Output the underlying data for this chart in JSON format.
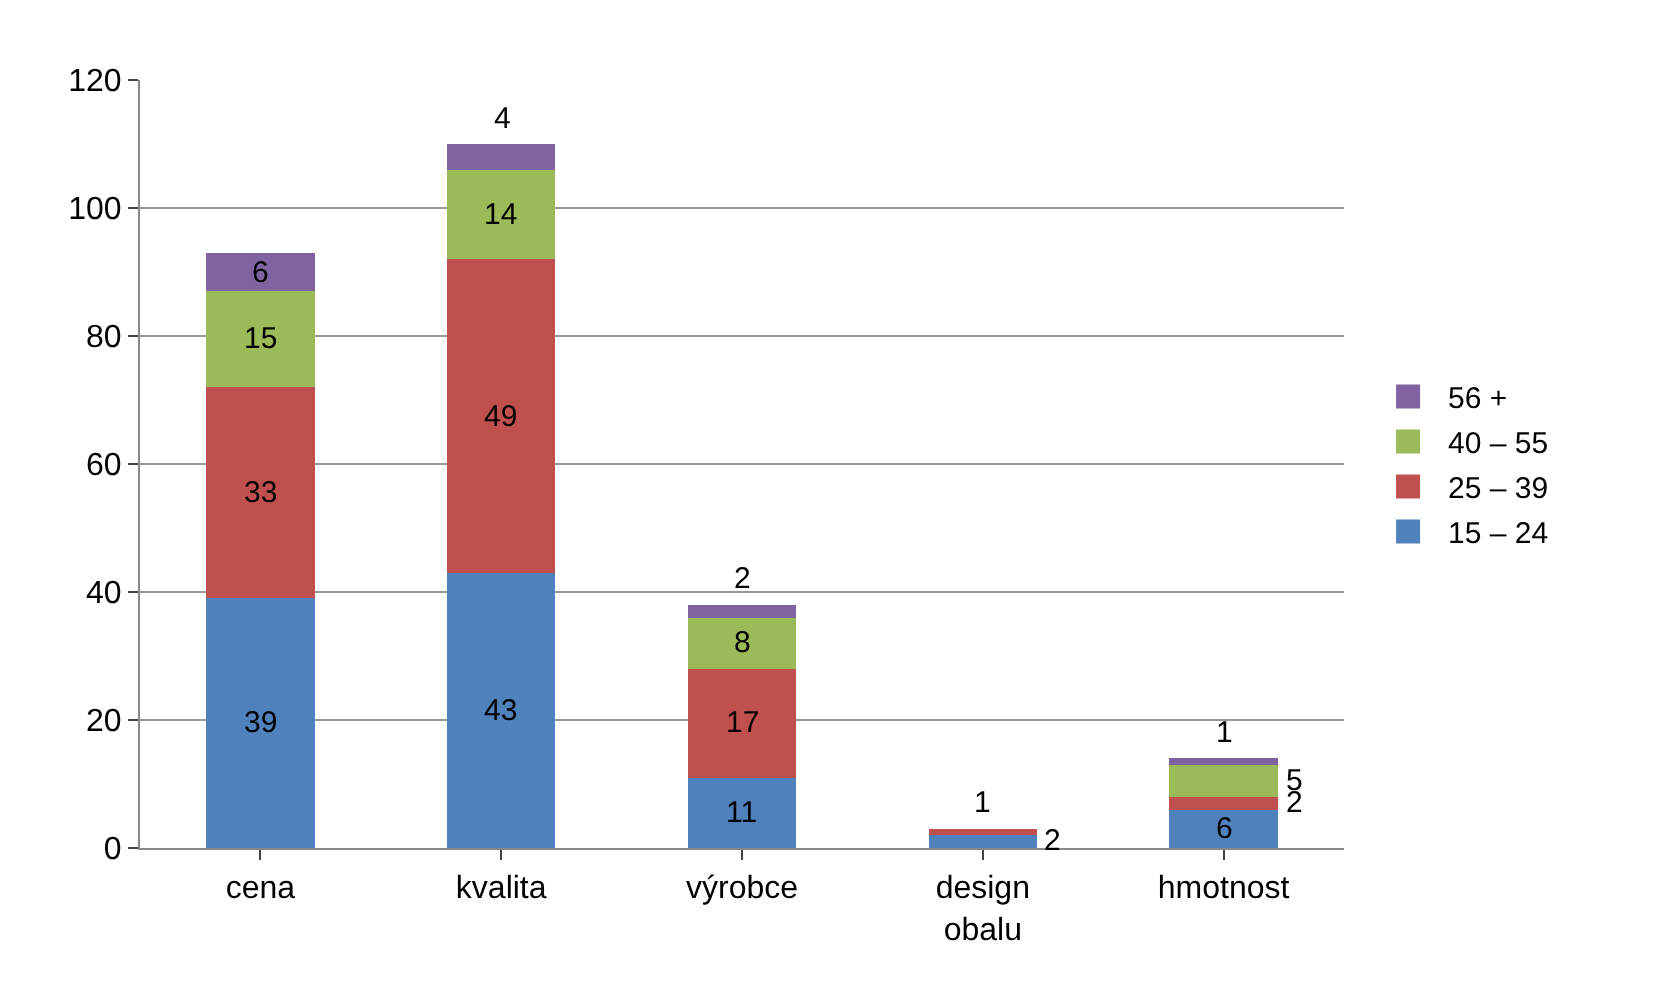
{
  "chart_data": {
    "type": "bar",
    "stacked": true,
    "categories": [
      "cena",
      "kvalita",
      "výrobce",
      "design obalu",
      "hmotnost"
    ],
    "series": [
      {
        "name": "15 – 24",
        "color": "#4f81bd",
        "values": [
          39,
          43,
          11,
          2,
          6
        ]
      },
      {
        "name": "25 – 39",
        "color": "#c0504d",
        "values": [
          33,
          49,
          17,
          1,
          2
        ]
      },
      {
        "name": "40 – 55",
        "color": "#9bbb59",
        "values": [
          15,
          14,
          8,
          null,
          5
        ]
      },
      {
        "name": "56 +",
        "color": "#8064a2",
        "values": [
          6,
          4,
          2,
          null,
          1
        ]
      }
    ],
    "ylim": [
      0,
      120
    ],
    "yticks": [
      0,
      20,
      40,
      60,
      80,
      100,
      120
    ],
    "grid": "y",
    "legend": "right",
    "data_labels": true
  }
}
